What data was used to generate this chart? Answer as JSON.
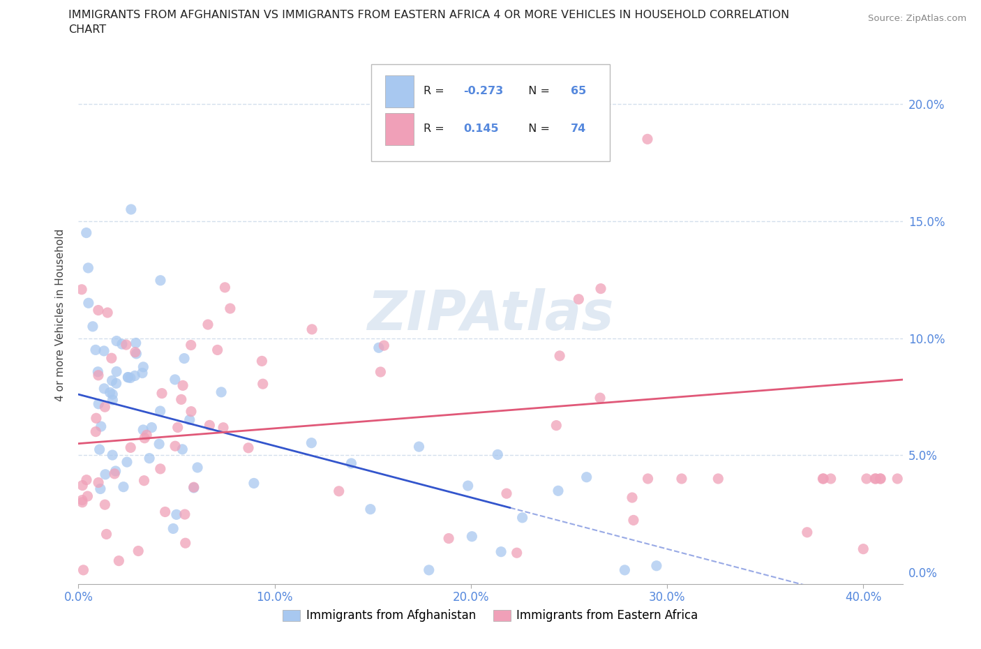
{
  "title_line1": "IMMIGRANTS FROM AFGHANISTAN VS IMMIGRANTS FROM EASTERN AFRICA 4 OR MORE VEHICLES IN HOUSEHOLD CORRELATION",
  "title_line2": "CHART",
  "source": "Source: ZipAtlas.com",
  "ylabel": "4 or more Vehicles in Household",
  "afghanistan_color": "#a8c8f0",
  "eastern_africa_color": "#f0a0b8",
  "afghanistan_line_color": "#3355cc",
  "eastern_africa_line_color": "#e05878",
  "afghanistan_R": -0.273,
  "afghanistan_N": 65,
  "eastern_africa_R": 0.145,
  "eastern_africa_N": 74,
  "watermark": "ZIPAtlas",
  "legend_label_1": "Immigrants from Afghanistan",
  "legend_label_2": "Immigrants from Eastern Africa",
  "tick_color": "#5588dd",
  "grid_color": "#c8d8e8",
  "xlim": [
    0.0,
    0.42
  ],
  "ylim": [
    0.0,
    0.22
  ],
  "x_ticks": [
    0.0,
    0.1,
    0.2,
    0.3,
    0.4
  ],
  "y_ticks": [
    0.0,
    0.05,
    0.1,
    0.15,
    0.2
  ],
  "afg_intercept": 0.076,
  "afg_slope": -0.22,
  "ea_intercept": 0.055,
  "ea_slope": 0.065
}
